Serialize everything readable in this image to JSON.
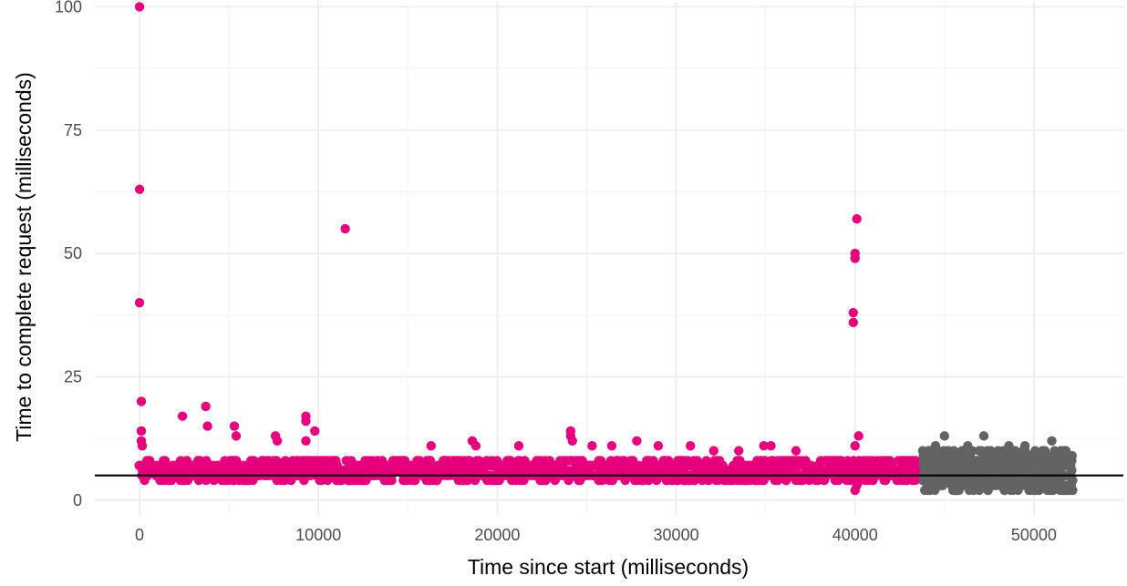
{
  "chart_data": {
    "type": "scatter",
    "xlabel": "Time since start (milliseconds)",
    "ylabel": "Time to complete request (milliseconds)",
    "xlim": [
      -2500,
      55000
    ],
    "ylim": [
      -3,
      101
    ],
    "x_ticks": [
      0,
      10000,
      20000,
      30000,
      40000,
      50000
    ],
    "x_tick_labels": [
      "0",
      "10000",
      "20000",
      "30000",
      "40000",
      "50000"
    ],
    "y_ticks": [
      0,
      25,
      50,
      75,
      100
    ],
    "y_tick_labels": [
      "0",
      "25",
      "50",
      "75",
      "100"
    ],
    "grid": true,
    "legend": "none",
    "reference_line": {
      "orientation": "horizontal",
      "y": 5,
      "color": "#000000"
    },
    "series": [
      {
        "color": "#e7007d",
        "x_range": [
          0,
          43800
        ],
        "band_typical": [
          4,
          8
        ],
        "points": [
          [
            0,
            100
          ],
          [
            0,
            63
          ],
          [
            0,
            40
          ],
          [
            100,
            20
          ],
          [
            100,
            14
          ],
          [
            100,
            12
          ],
          [
            150,
            11
          ],
          [
            2400,
            17
          ],
          [
            3700,
            19
          ],
          [
            3800,
            15
          ],
          [
            5300,
            15
          ],
          [
            5400,
            13
          ],
          [
            7600,
            13
          ],
          [
            7700,
            12
          ],
          [
            9300,
            17
          ],
          [
            9300,
            16
          ],
          [
            9300,
            12
          ],
          [
            9800,
            14
          ],
          [
            11500,
            55
          ],
          [
            16300,
            11
          ],
          [
            18600,
            12
          ],
          [
            18800,
            11
          ],
          [
            21200,
            11
          ],
          [
            24100,
            14
          ],
          [
            24100,
            13
          ],
          [
            24200,
            12
          ],
          [
            25300,
            11
          ],
          [
            26400,
            11
          ],
          [
            27800,
            12
          ],
          [
            29000,
            11
          ],
          [
            30800,
            11
          ],
          [
            32100,
            10
          ],
          [
            33500,
            10
          ],
          [
            34900,
            11
          ],
          [
            35300,
            11
          ],
          [
            36700,
            10
          ],
          [
            39900,
            38
          ],
          [
            39900,
            36
          ],
          [
            40000,
            50
          ],
          [
            40000,
            49
          ],
          [
            40100,
            57
          ],
          [
            40000,
            11
          ],
          [
            40200,
            13
          ],
          [
            40000,
            2
          ],
          [
            40100,
            3
          ]
        ]
      },
      {
        "color": "#636363",
        "x_range": [
          43800,
          52200
        ],
        "band_typical": [
          2,
          10
        ],
        "points": [
          [
            45000,
            13
          ],
          [
            47200,
            13
          ],
          [
            44500,
            11
          ],
          [
            46300,
            11
          ],
          [
            48600,
            11
          ],
          [
            51000,
            12
          ],
          [
            49500,
            11
          ],
          [
            52000,
            2
          ],
          [
            43900,
            2
          ]
        ]
      }
    ]
  }
}
